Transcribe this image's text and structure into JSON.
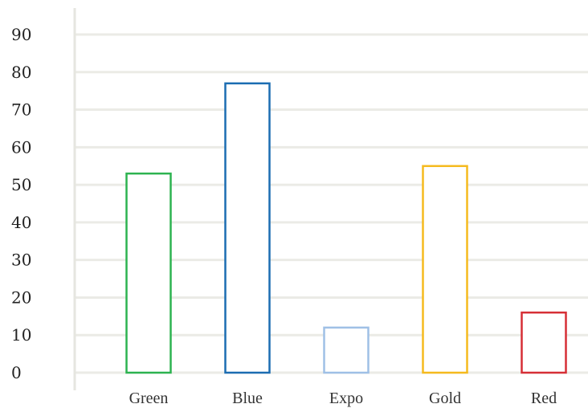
{
  "chart_data": {
    "type": "bar",
    "categories": [
      "Green",
      "Blue",
      "Expo",
      "Gold",
      "Red"
    ],
    "values": [
      53,
      77,
      12,
      55,
      16
    ],
    "colors": [
      "#2db350",
      "#1c6db2",
      "#9fc0e6",
      "#f5ba1e",
      "#d62f36"
    ],
    "y_ticks": [
      "0",
      "10",
      "20",
      "30",
      "40",
      "50",
      "60",
      "70",
      "80",
      "90"
    ],
    "ylim": [
      0,
      90
    ],
    "bar_style": "outlined",
    "grid": true,
    "title": "",
    "xlabel": "",
    "ylabel": ""
  }
}
